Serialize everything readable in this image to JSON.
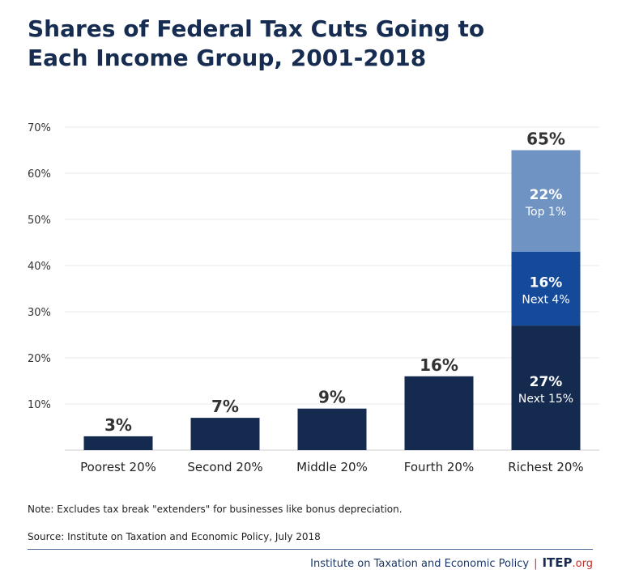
{
  "chart_data": {
    "type": "bar",
    "title": "Shares of Federal Tax Cuts Going to Each Income Group, 2001-2018",
    "categories": [
      "Poorest 20%",
      "Second 20%",
      "Middle 20%",
      "Fourth 20%",
      "Richest 20%"
    ],
    "values": [
      3,
      7,
      9,
      16,
      65
    ],
    "value_labels": [
      "3%",
      "7%",
      "9%",
      "16%",
      "65%"
    ],
    "stacked_richest": [
      {
        "name": "Next 15%",
        "value": 27,
        "label": "27%",
        "color": "#142a4e"
      },
      {
        "name": "Next 4%",
        "value": 16,
        "label": "16%",
        "color": "#154a9a"
      },
      {
        "name": "Top 1%",
        "value": 22,
        "label": "22%",
        "color": "#6f93c2"
      }
    ],
    "bar_color": "#142a4e",
    "ylim": [
      0,
      70
    ],
    "yticks": [
      10,
      20,
      30,
      40,
      50,
      60,
      70
    ],
    "ytick_labels": [
      "10%",
      "20%",
      "30%",
      "40%",
      "50%",
      "60%",
      "70%"
    ],
    "grid": true
  },
  "note": "Note: Excludes tax break \"extenders\" for businesses like bonus depreciation.",
  "source": "Source: Institute on Taxation and Economic Policy, July 2018",
  "footer": {
    "org": "Institute on Taxation and Economic Policy",
    "sep": "|",
    "brand": "ITEP",
    "brand_suffix": ".org"
  }
}
